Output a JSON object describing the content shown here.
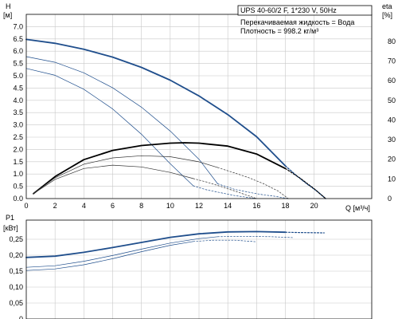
{
  "chart_data": [
    {
      "id": "head",
      "type": "line",
      "title": "UPS 40-60/2 F, 1*230 V, 50Hz",
      "info_lines": [
        "Перекачиваемая жидкость = Вода",
        "Плотность = 998.2 кг/м³"
      ],
      "ylabel_lines": [
        "H",
        "[м]"
      ],
      "y2label_lines": [
        "eta",
        "[%]"
      ],
      "xlabel": "Q [м³/ч]",
      "xlim": [
        0,
        24
      ],
      "ylim": [
        0,
        7.5
      ],
      "y2lim": [
        0,
        93.75
      ],
      "x_ticks": [
        0,
        2,
        4,
        6,
        8,
        10,
        12,
        14,
        16,
        18,
        20
      ],
      "x_tick_labels": [
        "0",
        "2",
        "4",
        "6",
        "8",
        "10",
        "12",
        "14",
        "16",
        "18",
        "20"
      ],
      "y_ticks": [
        0,
        0.5,
        1,
        1.5,
        2,
        2.5,
        3,
        3.5,
        4,
        4.5,
        5,
        5.5,
        6,
        6.5,
        7
      ],
      "y_tick_labels": [
        "0.0",
        "0.5",
        "1.0",
        "1.5",
        "2.0",
        "2.5",
        "3.0",
        "3.5",
        "4.0",
        "4.5",
        "5.0",
        "5.5",
        "6.0",
        "6.5",
        "7.0"
      ],
      "y2_ticks": [
        0,
        10,
        20,
        30,
        40,
        50,
        60,
        70,
        80
      ],
      "y2_tick_labels": [
        "0",
        "10",
        "20",
        "30",
        "40",
        "50",
        "60",
        "70",
        "80"
      ],
      "grid": true,
      "series": [
        {
          "axis": "y",
          "color": "#1f4e8c",
          "width": 1.8,
          "x": [
            0,
            2,
            4,
            6,
            8,
            10,
            12,
            14,
            16,
            18
          ],
          "y": [
            6.48,
            6.32,
            6.08,
            5.76,
            5.34,
            4.82,
            4.18,
            3.42,
            2.52,
            1.33
          ]
        },
        {
          "axis": "y",
          "color": "#1f4e8c",
          "width": 1.4,
          "dashed": true,
          "x": [
            18,
            18.8,
            19.5,
            20.2,
            20.8
          ],
          "y": [
            1.33,
            0.92,
            0.6,
            0.3,
            0
          ]
        },
        {
          "axis": "y",
          "color": "#1f4e8c",
          "width": 0.7,
          "x": [
            0,
            2,
            4,
            6,
            8,
            10,
            12,
            13.3
          ],
          "y": [
            5.78,
            5.55,
            5.12,
            4.51,
            3.72,
            2.75,
            1.6,
            0.6
          ]
        },
        {
          "axis": "y",
          "color": "#1f4e8c",
          "width": 0.7,
          "dashed": true,
          "x": [
            13.3,
            14.5,
            15.8,
            16.5,
            17.2,
            18.2
          ],
          "y": [
            0.6,
            0.37,
            0.22,
            0.15,
            0.1,
            0
          ]
        },
        {
          "axis": "y",
          "color": "#1f4e8c",
          "width": 0.7,
          "x": [
            0,
            2,
            4,
            6,
            8,
            10,
            11.6
          ],
          "y": [
            5.3,
            5.02,
            4.45,
            3.65,
            2.62,
            1.42,
            0.52
          ]
        },
        {
          "axis": "y",
          "color": "#1f4e8c",
          "width": 0.7,
          "dashed": true,
          "x": [
            11.6,
            12.5,
            13.5,
            14.5,
            15.5,
            16
          ],
          "y": [
            0.52,
            0.36,
            0.24,
            0.12,
            0.04,
            0
          ]
        },
        {
          "axis": "y2",
          "color": "#000000",
          "width": 1.8,
          "x": [
            0.5,
            2,
            4,
            6,
            8,
            10,
            11,
            12,
            14,
            16,
            18
          ],
          "y": [
            2.5,
            11.2,
            19.8,
            24.5,
            27.0,
            28.2,
            28.4,
            28.2,
            26.7,
            22.7,
            15.3
          ]
        },
        {
          "axis": "y2",
          "color": "#000000",
          "width": 1.2,
          "dashed": true,
          "x": [
            18,
            19,
            20,
            20.8
          ],
          "y": [
            15.3,
            10.5,
            5.0,
            0
          ]
        },
        {
          "axis": "y2",
          "color": "#333333",
          "width": 0.7,
          "x": [
            0.5,
            2,
            4,
            6,
            8,
            10,
            12,
            13.3
          ],
          "y": [
            2.5,
            10.6,
            17.5,
            20.7,
            21.8,
            21.3,
            18.7,
            15.8
          ]
        },
        {
          "axis": "y2",
          "color": "#333333",
          "width": 0.7,
          "dashed": true,
          "x": [
            13.3,
            14.5,
            15.5,
            16.5,
            17.5,
            18.2
          ],
          "y": [
            15.8,
            13.0,
            10.5,
            7.5,
            3.8,
            0
          ]
        },
        {
          "axis": "y2",
          "color": "#333333",
          "width": 0.7,
          "x": [
            0.5,
            2,
            4,
            6,
            8,
            10,
            11.6
          ],
          "y": [
            2.5,
            9.8,
            15.3,
            17.0,
            16.1,
            13.3,
            10.2
          ]
        },
        {
          "axis": "y2",
          "color": "#333333",
          "width": 0.7,
          "dashed": true,
          "x": [
            11.6,
            12.5,
            13.5,
            14.5,
            15.5,
            16
          ],
          "y": [
            10.2,
            8.5,
            6.2,
            3.8,
            1.3,
            0
          ]
        }
      ]
    },
    {
      "id": "power",
      "type": "line",
      "ylabel_lines": [
        "P1",
        "[кВт]"
      ],
      "xlim": [
        0,
        24
      ],
      "ylim": [
        0,
        0.31
      ],
      "x_ticks": [
        0,
        2,
        4,
        6,
        8,
        10,
        12,
        14,
        16,
        18,
        20
      ],
      "y_ticks": [
        0,
        0.05,
        0.1,
        0.15,
        0.2,
        0.25
      ],
      "y_tick_labels": [
        "0",
        "0,05",
        "0,10",
        "0,15",
        "0,20",
        "0,25"
      ],
      "grid": true,
      "series": [
        {
          "axis": "y",
          "color": "#1f4e8c",
          "width": 1.8,
          "x": [
            0,
            2,
            4,
            6,
            8,
            10,
            12,
            14,
            16,
            18
          ],
          "y": [
            0.193,
            0.197,
            0.209,
            0.224,
            0.24,
            0.256,
            0.267,
            0.273,
            0.274,
            0.272
          ]
        },
        {
          "axis": "y",
          "color": "#1f4e8c",
          "width": 1.2,
          "dashed": true,
          "x": [
            18,
            19,
            20.7
          ],
          "y": [
            0.272,
            0.271,
            0.27
          ]
        },
        {
          "axis": "y",
          "color": "#1f4e8c",
          "width": 0.7,
          "x": [
            0,
            2,
            4,
            6,
            8,
            10,
            12,
            13.3
          ],
          "y": [
            0.162,
            0.167,
            0.181,
            0.199,
            0.219,
            0.238,
            0.252,
            0.258
          ]
        },
        {
          "axis": "y",
          "color": "#1f4e8c",
          "width": 0.7,
          "dashed": true,
          "x": [
            13.3,
            15,
            17,
            18.6
          ],
          "y": [
            0.258,
            0.259,
            0.258,
            0.255
          ]
        },
        {
          "axis": "y",
          "color": "#1f4e8c",
          "width": 0.7,
          "x": [
            0,
            2,
            4,
            6,
            8,
            10,
            11.6
          ],
          "y": [
            0.152,
            0.157,
            0.17,
            0.189,
            0.211,
            0.231,
            0.243
          ]
        },
        {
          "axis": "y",
          "color": "#1f4e8c",
          "width": 0.7,
          "dashed": true,
          "x": [
            11.6,
            13,
            14.5,
            16
          ],
          "y": [
            0.243,
            0.247,
            0.247,
            0.242
          ]
        }
      ]
    }
  ]
}
